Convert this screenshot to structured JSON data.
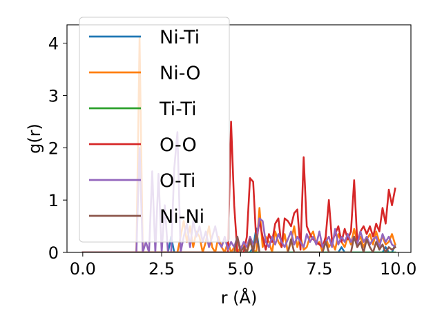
{
  "chart_data": {
    "type": "line",
    "xlabel": "r (Å)",
    "ylabel": "g(r)",
    "xlim": [
      -0.5,
      10.4
    ],
    "ylim": [
      0,
      4.35
    ],
    "xticks": [
      0.0,
      2.5,
      5.0,
      7.5,
      10.0
    ],
    "xtick_labels": [
      "0.0",
      "2.5",
      "5.0",
      "7.5",
      "10.0"
    ],
    "yticks": [
      0,
      1,
      2,
      3,
      4
    ],
    "ytick_labels": [
      "0",
      "1",
      "2",
      "3",
      "4"
    ],
    "grid": false,
    "legend": "upper-left",
    "series": [
      {
        "name": "Ni-Ti",
        "color": "#1f77b4",
        "x": [
          0.0,
          2.7,
          2.8,
          2.9,
          3.0,
          5.3,
          5.4,
          5.5,
          5.6,
          8.1,
          8.2,
          8.3,
          9.5,
          9.6,
          9.7,
          9.8,
          9.9
        ],
        "y": [
          0,
          0,
          0.3,
          0,
          0,
          0,
          0.1,
          0.46,
          0,
          0,
          0.1,
          0,
          0,
          0.1,
          0,
          0,
          0.15
        ]
      },
      {
        "name": "Ni-O",
        "color": "#ff7f0e",
        "x": [
          0.0,
          1.7,
          1.8,
          1.9,
          2.0,
          3.0,
          3.1,
          3.2,
          3.3,
          3.4,
          3.5,
          3.6,
          3.7,
          3.8,
          3.9,
          4.0,
          4.1,
          4.2,
          4.3,
          4.4,
          4.5,
          4.6,
          4.7,
          4.8,
          4.9,
          5.0,
          5.1,
          5.2,
          5.3,
          5.4,
          5.5,
          5.6,
          5.7,
          5.8,
          5.9,
          6.0,
          6.1,
          6.2,
          6.3,
          6.4,
          6.5,
          6.6,
          6.7,
          6.8,
          6.9,
          7.0,
          7.1,
          7.2,
          7.3,
          7.4,
          7.5,
          7.6,
          7.7,
          7.8,
          7.9,
          8.0,
          8.1,
          8.2,
          8.3,
          8.4,
          8.5,
          8.6,
          8.7,
          8.8,
          8.9,
          9.0,
          9.1,
          9.2,
          9.3,
          9.4,
          9.5,
          9.6,
          9.7,
          9.8,
          9.9
        ],
        "y": [
          0,
          0,
          4.1,
          0,
          0,
          0,
          0.3,
          0.6,
          0.2,
          0.5,
          0.1,
          0.4,
          0.3,
          0,
          0.2,
          0.5,
          0.1,
          0,
          0.3,
          0.1,
          0,
          0.2,
          0,
          0.1,
          0,
          0.1,
          0.15,
          0,
          0.2,
          0.05,
          0,
          0.85,
          0.1,
          0.3,
          0.2,
          0,
          0.4,
          0.2,
          0.1,
          0.35,
          0,
          0.2,
          0.5,
          0.1,
          0.3,
          0.05,
          0.1,
          0.3,
          0.4,
          0.15,
          0.2,
          0,
          0.3,
          0.1,
          0.2,
          0.05,
          0.35,
          0.2,
          0.1,
          0.3,
          0.15,
          0.45,
          0.2,
          0.3,
          0.1,
          0.25,
          0.35,
          0.15,
          0.4,
          0.2,
          0.3,
          0.15,
          0.2,
          0.35,
          0.15
        ]
      },
      {
        "name": "Ti-Ti",
        "color": "#2ca02c",
        "x": [
          0.0,
          9.9
        ],
        "y": [
          0,
          0
        ]
      },
      {
        "name": "O-O",
        "color": "#d62728",
        "x": [
          0.0,
          4.5,
          4.6,
          4.7,
          4.8,
          4.9,
          5.0,
          5.1,
          5.2,
          5.3,
          5.4,
          5.5,
          5.6,
          5.7,
          5.8,
          5.9,
          6.0,
          6.1,
          6.2,
          6.3,
          6.4,
          6.5,
          6.6,
          6.7,
          6.8,
          6.9,
          7.0,
          7.1,
          7.2,
          7.3,
          7.4,
          7.5,
          7.6,
          7.7,
          7.8,
          7.9,
          8.0,
          8.1,
          8.2,
          8.3,
          8.4,
          8.5,
          8.6,
          8.7,
          8.8,
          8.9,
          9.0,
          9.1,
          9.2,
          9.3,
          9.4,
          9.5,
          9.6,
          9.7,
          9.8,
          9.9
        ],
        "y": [
          0,
          0,
          0,
          2.5,
          0.9,
          0,
          0,
          0,
          0.3,
          1.42,
          1.35,
          0.2,
          0.6,
          0.3,
          0.05,
          0.35,
          0.2,
          0.55,
          0.65,
          0.1,
          0.65,
          0.6,
          0.5,
          0.75,
          0.82,
          0.05,
          1.82,
          0.5,
          0.35,
          0.25,
          0.2,
          0.15,
          0.1,
          0.3,
          1.0,
          0.2,
          0.35,
          0.5,
          0.2,
          0.45,
          0.25,
          0.4,
          1.38,
          0.2,
          0.4,
          0.5,
          0.35,
          0.5,
          0.3,
          0.55,
          0.4,
          0.85,
          0.55,
          1.2,
          0.9,
          1.22
        ]
      },
      {
        "name": "O-Ti",
        "color": "#9467bd",
        "x": [
          0.0,
          1.6,
          1.7,
          1.8,
          1.9,
          2.0,
          2.1,
          2.2,
          2.3,
          2.4,
          2.5,
          2.6,
          2.7,
          2.8,
          2.9,
          3.0,
          3.1,
          3.2,
          3.3,
          3.4,
          3.5,
          3.6,
          3.7,
          3.8,
          3.9,
          4.0,
          4.1,
          4.2,
          4.3,
          4.4,
          4.5,
          4.6,
          4.7,
          4.8,
          4.9,
          5.0,
          5.1,
          5.2,
          5.3,
          5.4,
          5.5,
          5.6,
          5.7,
          5.8,
          5.9,
          6.0,
          6.1,
          6.2,
          6.3,
          6.4,
          6.5,
          6.6,
          6.7,
          6.8,
          6.9,
          7.0,
          7.1,
          7.2,
          7.3,
          7.4,
          7.5,
          7.6,
          7.7,
          7.8,
          7.9,
          8.0,
          8.1,
          8.2,
          8.3,
          8.4,
          8.5,
          8.6,
          8.7,
          8.8,
          8.9,
          9.0,
          9.1,
          9.2,
          9.3,
          9.4,
          9.5,
          9.6,
          9.7,
          9.8,
          9.9
        ],
        "y": [
          0,
          0,
          0,
          2.0,
          0,
          0.2,
          0,
          1.55,
          0,
          1.5,
          0,
          0.9,
          0,
          0,
          1.6,
          2.3,
          0,
          0.3,
          0.55,
          0.1,
          0.6,
          0.3,
          0.5,
          0.2,
          0.4,
          0.1,
          0.3,
          0.5,
          0.2,
          0.1,
          0.3,
          0.05,
          0.2,
          0.1,
          0.3,
          0.05,
          0.2,
          0.1,
          0.3,
          0.15,
          0.2,
          0.65,
          0.6,
          0.2,
          0.1,
          0.3,
          0.15,
          0.35,
          0.2,
          0.1,
          0.25,
          0.4,
          0.15,
          0.3,
          0.2,
          0.1,
          0.35,
          0.2,
          0.3,
          0.15,
          0.4,
          0.1,
          0.2,
          0.3,
          0.1,
          0.45,
          0.15,
          0.3,
          0.2,
          0.35,
          0.2,
          0.3,
          0.15,
          0.4,
          0.2,
          0.3,
          0.15,
          0.25,
          0.3,
          0.1,
          0.35,
          0.2,
          0.3,
          0.15,
          0.1
        ]
      },
      {
        "name": "Ni-Ni",
        "color": "#8c564b",
        "x": [
          0.0,
          4.8,
          4.9,
          5.0,
          5.1,
          5.2,
          5.3,
          5.4,
          5.5,
          5.6,
          5.7,
          6.5,
          6.6,
          6.7,
          6.8,
          7.6,
          7.7,
          7.8,
          8.5,
          8.6,
          8.7,
          8.8,
          8.9,
          9.0,
          9.1,
          9.2,
          9.3,
          9.4,
          9.5,
          9.6,
          9.7,
          9.8,
          9.9
        ],
        "y": [
          0,
          0,
          0.3,
          0,
          0.1,
          0,
          0.25,
          0,
          0.35,
          0,
          0,
          0,
          0.25,
          0,
          0,
          0,
          0.2,
          0,
          0,
          0.3,
          0.1,
          0.2,
          0,
          0.25,
          0.1,
          0,
          0.2,
          0.05,
          0.15,
          0,
          0.1,
          0.05,
          0.1
        ]
      }
    ]
  }
}
